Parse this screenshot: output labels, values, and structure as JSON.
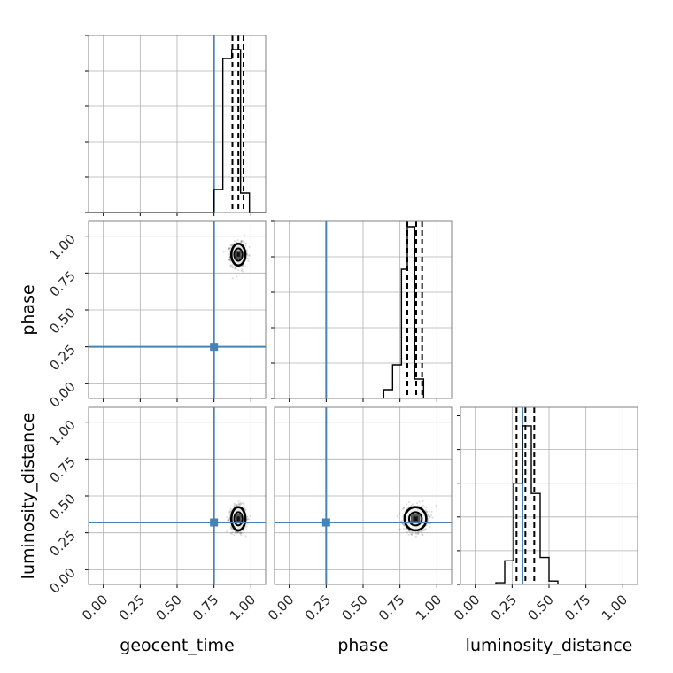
{
  "chart_data": {
    "type": "corner",
    "parameters": [
      "geocent_time",
      "phase",
      "luminosity_distance"
    ],
    "axis_range": [
      -0.1,
      1.1
    ],
    "ticks": [
      0.0,
      0.25,
      0.5,
      0.75,
      1.0
    ],
    "tick_labels": [
      "0.00",
      "0.25",
      "0.50",
      "0.75",
      "1.00"
    ],
    "injected_values": {
      "geocent_time": 0.75,
      "phase": 0.25,
      "luminosity_distance": 0.32
    },
    "grid": true,
    "colors": {
      "truth": "#4682b4",
      "hist": "#000000",
      "grid": "#b0b0b0",
      "frame": "#808080",
      "samples": "#000000"
    },
    "histograms": {
      "geocent_time": {
        "edges": [
          0.75,
          0.81,
          0.87,
          0.93,
          0.99,
          1.05
        ],
        "heights": [
          0.13,
          0.87,
          0.92,
          0.11,
          0.0
        ],
        "quantile_lines": [
          0.875,
          0.915,
          0.95
        ],
        "ylim": [
          0,
          1
        ]
      },
      "phase": {
        "edges": [
          0.64,
          0.7,
          0.76,
          0.8,
          0.85,
          0.91,
          0.97
        ],
        "heights": [
          0.05,
          0.19,
          0.73,
          0.97,
          0.11,
          0.0
        ],
        "quantile_lines": [
          0.8,
          0.86,
          0.9
        ],
        "ylim": [
          0,
          1
        ]
      },
      "luminosity_distance": {
        "edges": [
          0.14,
          0.2,
          0.26,
          0.32,
          0.38,
          0.44,
          0.5,
          0.56
        ],
        "heights": [
          0.01,
          0.14,
          0.6,
          0.94,
          0.54,
          0.16,
          0.02
        ],
        "quantile_lines": [
          0.28,
          0.34,
          0.4
        ],
        "ylim": [
          0,
          1.05
        ]
      }
    },
    "scatter_panels": [
      {
        "x": "geocent_time",
        "y": "phase",
        "center": [
          0.915,
          0.875
        ],
        "spread": [
          0.045,
          0.07
        ]
      },
      {
        "x": "geocent_time",
        "y": "luminosity_distance",
        "center": [
          0.915,
          0.345
        ],
        "spread": [
          0.045,
          0.075
        ]
      },
      {
        "x": "phase",
        "y": "luminosity_distance",
        "center": [
          0.855,
          0.345
        ],
        "spread": [
          0.07,
          0.075
        ]
      }
    ]
  }
}
